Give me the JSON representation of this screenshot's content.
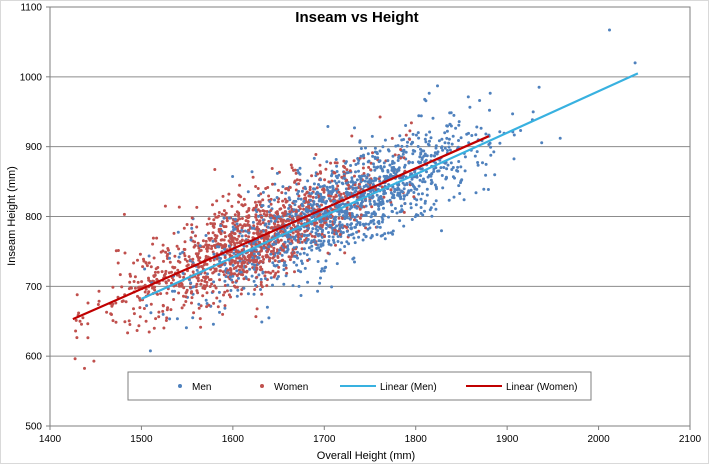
{
  "chart_data": {
    "type": "scatter",
    "title": "Inseam vs Height",
    "xlabel": "Overall Height (mm)",
    "ylabel": "Inseam Height (mm)",
    "xlim": [
      1400,
      2100
    ],
    "ylim": [
      500,
      1100
    ],
    "x_ticks": [
      1400,
      1500,
      1600,
      1700,
      1800,
      1900,
      2000,
      2100
    ],
    "y_ticks": [
      500,
      600,
      700,
      800,
      900,
      1000,
      1100
    ],
    "grid": "horizontal major gridlines",
    "legend_position": "bottom-center inside plot",
    "series": [
      {
        "name": "Men",
        "kind": "scatter",
        "color": "#4f81bd",
        "x_range": [
          1500,
          2045
        ],
        "center": [
          1720,
          810
        ],
        "cluster_note": "dense cloud from about 1500 to 1950 mm height, about 680 to 950 mm inseam",
        "outliers": [
          [
            2012,
            1067
          ],
          [
            2040,
            1020
          ],
          [
            1958,
            912
          ],
          [
            1935,
            985
          ]
        ]
      },
      {
        "name": "Women",
        "kind": "scatter",
        "color": "#c0504d",
        "x_range": [
          1425,
          1880
        ],
        "center": [
          1620,
          775
        ],
        "cluster_note": "dense cloud from about 1450 to 1880 mm height, about 640 to 940 mm inseam",
        "outliers": [
          [
            1448,
            593
          ],
          [
            1428,
            636
          ],
          [
            1436,
            655
          ]
        ]
      },
      {
        "name": "Linear (Men)",
        "kind": "trendline",
        "color": "#38b1e0",
        "start": [
          1500,
          682
        ],
        "end": [
          2043,
          1005
        ]
      },
      {
        "name": "Linear (Women)",
        "kind": "trendline",
        "color": "#c00000",
        "start": [
          1425,
          653
        ],
        "end": [
          1880,
          915
        ]
      }
    ]
  },
  "legend": {
    "items": [
      {
        "label": "Men",
        "marker": "dot",
        "color": "#4f81bd"
      },
      {
        "label": "Women",
        "marker": "dot",
        "color": "#c0504d"
      },
      {
        "label": "Linear (Men)",
        "marker": "line",
        "color": "#38b1e0"
      },
      {
        "label": "Linear (Women)",
        "marker": "line",
        "color": "#c00000"
      }
    ]
  }
}
